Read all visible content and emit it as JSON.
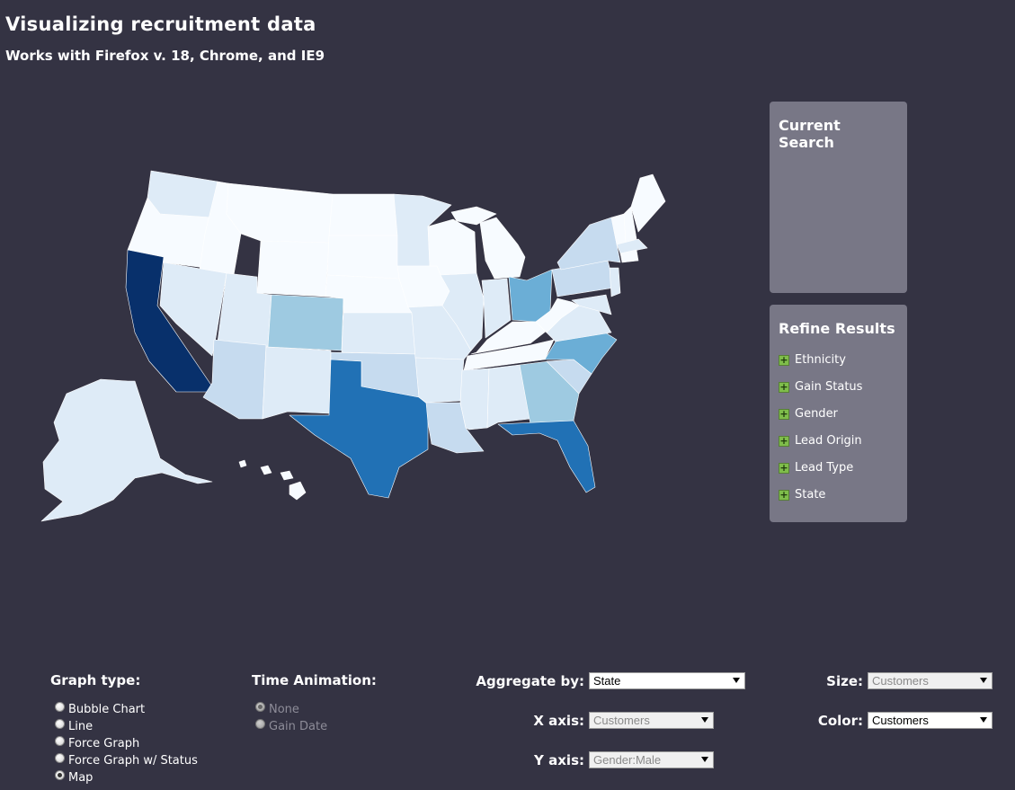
{
  "header": {
    "title": "Visualizing recruitment data",
    "subtitle": "Works with Firefox v. 18, Chrome, and IE9"
  },
  "current_search": {
    "title": "Current Search"
  },
  "refine": {
    "title": "Refine Results",
    "items": [
      "Ethnicity",
      "Gain Status",
      "Gender",
      "Lead Origin",
      "Lead Type",
      "State"
    ]
  },
  "graph_type": {
    "label": "Graph type:",
    "options": [
      "Bubble Chart",
      "Line",
      "Force Graph",
      "Force Graph w/ Status",
      "Map"
    ],
    "selected": "Map"
  },
  "time_animation": {
    "label": "Time Animation:",
    "options": [
      "None",
      "Gain Date"
    ],
    "selected": "None",
    "disabled": true
  },
  "controls": {
    "aggregate_by": {
      "label": "Aggregate by:",
      "value": "State",
      "disabled": false
    },
    "x_axis": {
      "label": "X axis:",
      "value": "Customers",
      "disabled": true
    },
    "y_axis": {
      "label": "Y axis:",
      "value": "Gender:Male",
      "disabled": true
    },
    "size": {
      "label": "Size:",
      "value": "Customers",
      "disabled": true
    },
    "color": {
      "label": "Color:",
      "value": "Customers",
      "disabled": false
    }
  },
  "map": {
    "color_scale": [
      "#f7fbff",
      "#deebf7",
      "#c6dbef",
      "#9ecae1",
      "#6baed6",
      "#2171b5",
      "#08306b"
    ],
    "background": "#343343"
  }
}
